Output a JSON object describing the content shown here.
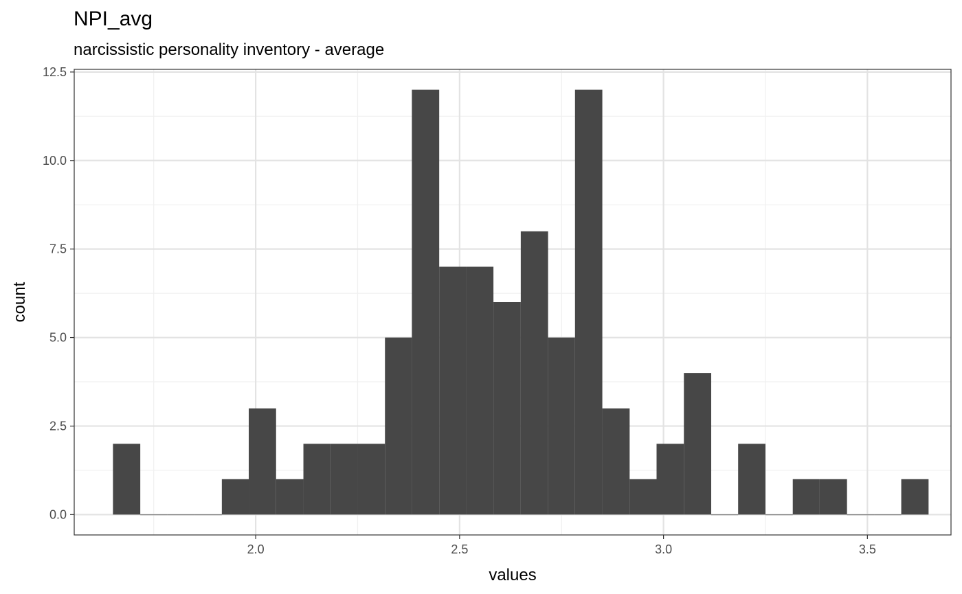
{
  "title": "NPI_avg",
  "subtitle": "narcissistic personality inventory - average",
  "colors": {
    "bar": "#474747",
    "grid_major": "#e3e3e3",
    "grid_minor": "#f0f0f0",
    "panel_border": "#333333",
    "tick_text": "#4d4d4d"
  },
  "chart_data": {
    "type": "bar",
    "xlabel": "values",
    "ylabel": "count",
    "xlim": [
      1.555,
      3.705
    ],
    "ylim": [
      -0.575,
      12.575
    ],
    "x_ticks": [
      2.0,
      2.5,
      3.0,
      3.5
    ],
    "x_tick_labels": [
      "2.0",
      "2.5",
      "3.0",
      "3.5"
    ],
    "y_ticks": [
      0,
      2.5,
      5,
      7.5,
      10,
      12.5
    ],
    "y_tick_labels": [
      "0.0",
      "2.5",
      "5.0",
      "7.5",
      "10.0",
      "12.5"
    ],
    "grid": true,
    "bin_width": 0.0667,
    "bins": [
      {
        "x0": 1.65,
        "x1": 1.717,
        "count": 2
      },
      {
        "x0": 1.717,
        "x1": 1.783,
        "count": 0
      },
      {
        "x0": 1.783,
        "x1": 1.85,
        "count": 0
      },
      {
        "x0": 1.85,
        "x1": 1.917,
        "count": 0
      },
      {
        "x0": 1.917,
        "x1": 1.983,
        "count": 1
      },
      {
        "x0": 1.983,
        "x1": 2.05,
        "count": 3
      },
      {
        "x0": 2.05,
        "x1": 2.117,
        "count": 1
      },
      {
        "x0": 2.117,
        "x1": 2.183,
        "count": 2
      },
      {
        "x0": 2.183,
        "x1": 2.25,
        "count": 2
      },
      {
        "x0": 2.25,
        "x1": 2.317,
        "count": 2
      },
      {
        "x0": 2.317,
        "x1": 2.383,
        "count": 5
      },
      {
        "x0": 2.383,
        "x1": 2.45,
        "count": 12
      },
      {
        "x0": 2.45,
        "x1": 2.517,
        "count": 7
      },
      {
        "x0": 2.517,
        "x1": 2.583,
        "count": 7
      },
      {
        "x0": 2.583,
        "x1": 2.65,
        "count": 6
      },
      {
        "x0": 2.65,
        "x1": 2.717,
        "count": 8
      },
      {
        "x0": 2.717,
        "x1": 2.783,
        "count": 5
      },
      {
        "x0": 2.783,
        "x1": 2.85,
        "count": 12
      },
      {
        "x0": 2.85,
        "x1": 2.917,
        "count": 3
      },
      {
        "x0": 2.917,
        "x1": 2.983,
        "count": 1
      },
      {
        "x0": 2.983,
        "x1": 3.05,
        "count": 2
      },
      {
        "x0": 3.05,
        "x1": 3.117,
        "count": 4
      },
      {
        "x0": 3.117,
        "x1": 3.183,
        "count": 0
      },
      {
        "x0": 3.183,
        "x1": 3.25,
        "count": 2
      },
      {
        "x0": 3.25,
        "x1": 3.317,
        "count": 0
      },
      {
        "x0": 3.317,
        "x1": 3.383,
        "count": 1
      },
      {
        "x0": 3.383,
        "x1": 3.45,
        "count": 1
      },
      {
        "x0": 3.45,
        "x1": 3.517,
        "count": 0
      },
      {
        "x0": 3.517,
        "x1": 3.583,
        "count": 0
      },
      {
        "x0": 3.583,
        "x1": 3.65,
        "count": 1
      }
    ]
  }
}
